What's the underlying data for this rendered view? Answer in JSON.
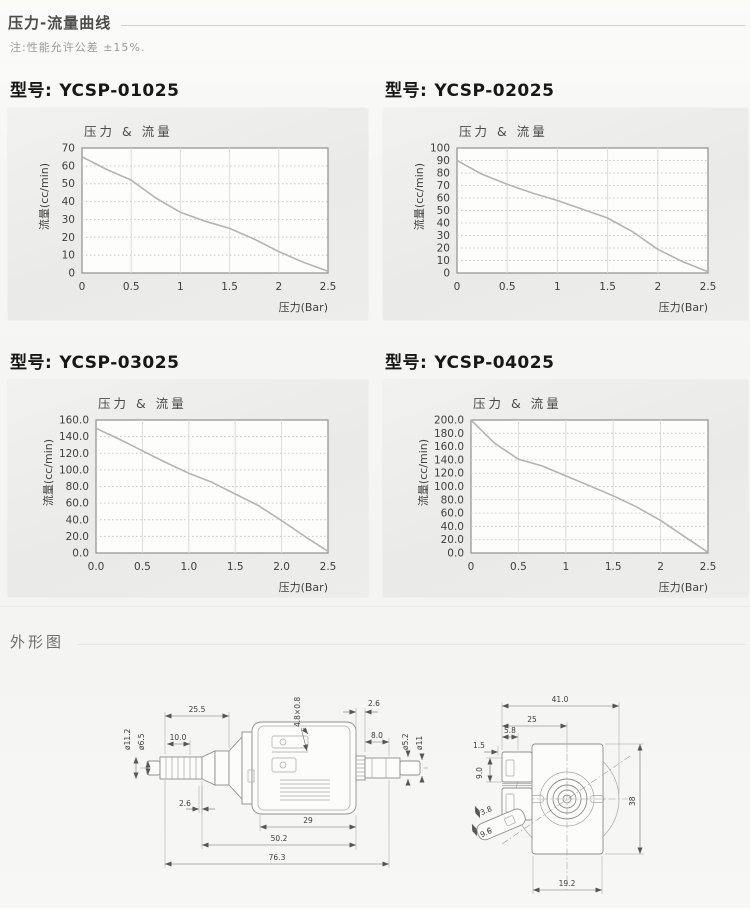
{
  "page": {
    "section1_title": "压力-流量曲线",
    "note": "注:性能允许公差 ±15%.",
    "section2_title": "外形图"
  },
  "chart_data": [
    {
      "type": "line",
      "model_prefix": "型号:",
      "model": "YCSP-01025",
      "title": "压力 & 流量",
      "xlabel": "压力(Bar)",
      "ylabel": "流量(cc/min)",
      "xlim": [
        0,
        2.5
      ],
      "ylim": [
        0,
        70
      ],
      "ystep": 10,
      "ytick_decimals": 0,
      "xtick_labels": [
        "0",
        "0.5",
        "1",
        "1.5",
        "2",
        "2.5"
      ],
      "x": [
        0,
        0.25,
        0.5,
        0.75,
        1,
        1.25,
        1.5,
        1.75,
        2,
        2.25,
        2.5
      ],
      "y": [
        65,
        58,
        52,
        42,
        34,
        29,
        25,
        19,
        12,
        6,
        1
      ],
      "grid": "on",
      "legend": "none"
    },
    {
      "type": "line",
      "model_prefix": "型号:",
      "model": "YCSP-02025",
      "title": "压力 & 流量",
      "xlabel": "压力(Bar)",
      "ylabel": "流量(cc/min)",
      "xlim": [
        0,
        2.5
      ],
      "ylim": [
        0,
        100
      ],
      "ystep": 10,
      "ytick_decimals": 0,
      "xtick_labels": [
        "0",
        "0.5",
        "1",
        "1.5",
        "2",
        "2.5"
      ],
      "x": [
        0,
        0.25,
        0.5,
        0.75,
        1,
        1.25,
        1.5,
        1.75,
        2,
        2.25,
        2.5
      ],
      "y": [
        90,
        79,
        71,
        64,
        58,
        51,
        44,
        33,
        19,
        9,
        1
      ],
      "grid": "on",
      "legend": "none"
    },
    {
      "type": "line",
      "model_prefix": "型号:",
      "model": "YCSP-03025",
      "title": "压力 & 流量",
      "xlabel": "压力(Bar)",
      "ylabel": "流量(cc/min)",
      "xlim": [
        0,
        2.5
      ],
      "ylim": [
        0,
        160
      ],
      "ystep": 20,
      "ytick_decimals": 1,
      "xtick_labels": [
        "0.0",
        "0.5",
        "1.0",
        "1.5",
        "2.0",
        "2.5"
      ],
      "x": [
        0,
        0.25,
        0.5,
        0.75,
        1,
        1.25,
        1.5,
        1.75,
        2,
        2.25,
        2.5
      ],
      "y": [
        150,
        137,
        123,
        109,
        96,
        85,
        71,
        57,
        39,
        20,
        2
      ],
      "grid": "on",
      "legend": "none"
    },
    {
      "type": "line",
      "model_prefix": "型号:",
      "model": "YCSP-04025",
      "title": "压力 & 流量",
      "xlabel": "压力(Bar)",
      "ylabel": "流量(cc/min)",
      "xlim": [
        0,
        2.5
      ],
      "ylim": [
        0,
        200
      ],
      "ystep": 20,
      "ytick_decimals": 1,
      "xtick_labels": [
        "0",
        "0.5",
        "1",
        "1.5",
        "2",
        "2.5"
      ],
      "x": [
        0,
        0.25,
        0.5,
        0.75,
        1,
        1.25,
        1.5,
        1.75,
        2,
        2.25,
        2.5
      ],
      "y": [
        200,
        165,
        141,
        131,
        116,
        101,
        86,
        69,
        49,
        25,
        1
      ],
      "grid": "on",
      "legend": "none"
    }
  ],
  "drawings": {
    "side_view": {
      "dims": {
        "len_25_5": "25.5",
        "len_10_0": "10.0",
        "slot_4_8x0_8": "4.8×0.8",
        "gap_2_6_top": "2.6",
        "len_8_0": "8.0",
        "dia_11_2": "ø11.2",
        "dia_6_5": "ø6.5",
        "dia_5_2": "ø5.2",
        "dia_11": "ø11",
        "gap_2_6_bottom": "2.6",
        "len_29": "29",
        "len_50_2": "50.2",
        "len_76_3": "76.3"
      }
    },
    "end_view": {
      "dims": {
        "len_41_0": "41.0",
        "len_25": "25",
        "len_5_8": "5.8",
        "len_1_5": "1.5",
        "len_9_0": "9.0",
        "len_3_8": "3.8",
        "len_9_6": "9.6",
        "len_38": "38",
        "len_19_2": "19.2"
      }
    }
  }
}
